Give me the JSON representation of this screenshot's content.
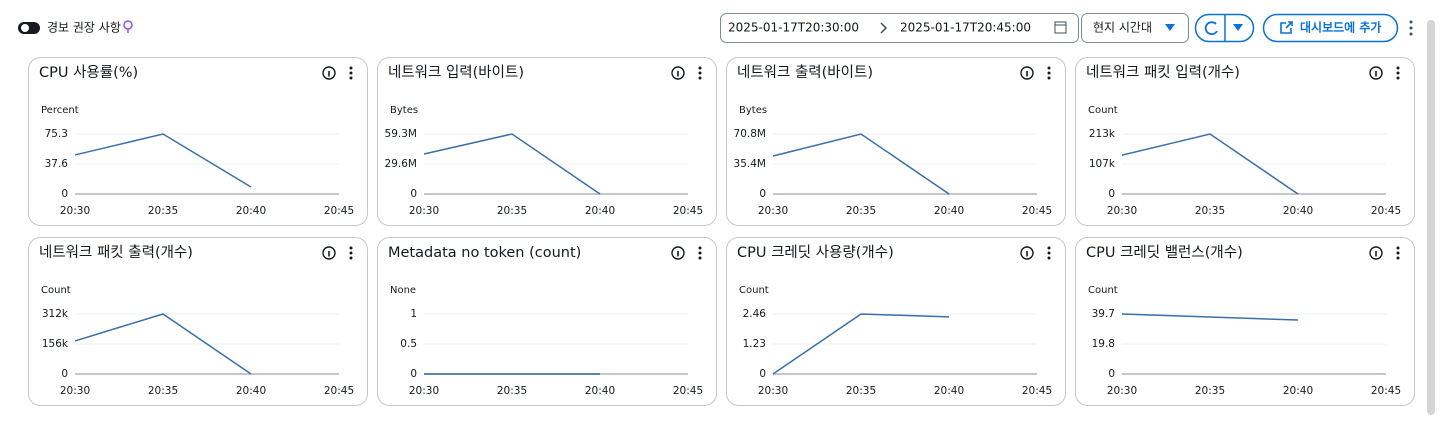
{
  "header": {
    "toggle_label": "경보 권장 사항",
    "start": "2025-01-17T20:30:00",
    "end": "2025-01-17T20:45:00",
    "timezone": "현지 시간대",
    "add_button": "대시보드에 추가"
  },
  "chart_data": [
    {
      "type": "line",
      "title": "CPU 사용률(%)",
      "y_label": "Percent",
      "categories": [
        "20:30",
        "20:35",
        "20:40",
        "20:45"
      ],
      "values": [
        49,
        75.3,
        8.8,
        null
      ],
      "color": "#3a6fa8",
      "ylim": [
        0,
        75.3
      ],
      "yticks": [
        0,
        37.6,
        75.3
      ]
    },
    {
      "type": "line",
      "title": "네트워크 입력(바이트)",
      "y_label": "Bytes",
      "categories": [
        "20:30",
        "20:35",
        "20:40",
        "20:45"
      ],
      "values": [
        39500000,
        59300000,
        0,
        null
      ],
      "color": "#3a6fa8",
      "ylim": [
        0,
        59300000
      ],
      "yticks": [
        0,
        {
          "value": 29600000,
          "label": "29.6M"
        },
        {
          "value": 59300000,
          "label": "59.3M"
        }
      ]
    },
    {
      "type": "line",
      "title": "네트워크 출력(바이트)",
      "y_label": "Bytes",
      "categories": [
        "20:30",
        "20:35",
        "20:40",
        "20:45"
      ],
      "values": [
        44800000,
        70800000,
        0,
        null
      ],
      "color": "#3a6fa8",
      "ylim": [
        0,
        70800000
      ],
      "yticks": [
        0,
        {
          "value": 35400000,
          "label": "35.4M"
        },
        {
          "value": 70800000,
          "label": "70.8M"
        }
      ]
    },
    {
      "type": "line",
      "title": "네트워크 패킷 입력(개수)",
      "y_label": "Count",
      "categories": [
        "20:30",
        "20:35",
        "20:40",
        "20:45"
      ],
      "values": [
        138000,
        213000,
        0,
        null
      ],
      "color": "#3a6fa8",
      "ylim": [
        0,
        213000
      ],
      "yticks": [
        0,
        {
          "value": 107000,
          "label": "107k"
        },
        {
          "value": 213000,
          "label": "213k"
        }
      ]
    },
    {
      "type": "line",
      "title": "네트워크 패킷 출력(개수)",
      "y_label": "Count",
      "categories": [
        "20:30",
        "20:35",
        "20:40",
        "20:45"
      ],
      "values": [
        172000,
        312000,
        0,
        null
      ],
      "color": "#3a6fa8",
      "ylim": [
        0,
        312000
      ],
      "yticks": [
        0,
        {
          "value": 156000,
          "label": "156k"
        },
        {
          "value": 312000,
          "label": "312k"
        }
      ]
    },
    {
      "type": "line",
      "title": "Metadata no token (count)",
      "y_label": "None",
      "categories": [
        "20:30",
        "20:35",
        "20:40",
        "20:45"
      ],
      "values": [
        0,
        0,
        0,
        null
      ],
      "color": "#3a6fa8",
      "ylim": [
        0,
        1
      ],
      "yticks": [
        0,
        0.5,
        1
      ]
    },
    {
      "type": "line",
      "title": "CPU 크레딧 사용량(개수)",
      "y_label": "Count",
      "categories": [
        "20:30",
        "20:35",
        "20:40",
        "20:45"
      ],
      "values": [
        0,
        2.46,
        2.34,
        null
      ],
      "color": "#3a6fa8",
      "ylim": [
        0,
        2.46
      ],
      "yticks": [
        0,
        1.23,
        2.46
      ]
    },
    {
      "type": "line",
      "title": "CPU 크레딧 밸런스(개수)",
      "y_label": "Count",
      "categories": [
        "20:30",
        "20:35",
        "20:40",
        "20:45"
      ],
      "values": [
        39.7,
        37.7,
        35.7,
        null
      ],
      "color": "#3a6fa8",
      "ylim": [
        0,
        39.7
      ],
      "yticks": [
        0,
        19.8,
        39.7
      ]
    }
  ]
}
